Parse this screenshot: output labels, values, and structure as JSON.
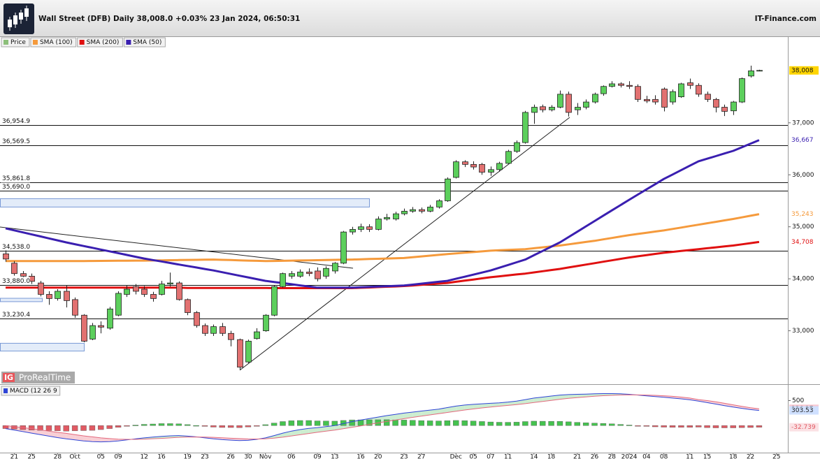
{
  "header": {
    "title": "Wall Street (DFB) Daily 38,008.0 +0.03% 23 Jan 2024, 06:50:31",
    "brand": "IT-Finance.com"
  },
  "watermark": {
    "logo": "IG",
    "name": "ProRealTime"
  },
  "chart_data": [
    {
      "type": "candlestick",
      "name": "Price",
      "up_color": "#5ccf5c",
      "down_color": "#e27171",
      "last_label": "38,008",
      "categories": [
        null,
        "21",
        null,
        "25",
        null,
        null,
        "28",
        null,
        "Oct",
        null,
        null,
        "05",
        null,
        "09",
        null,
        null,
        "12",
        null,
        "16",
        null,
        null,
        "19",
        null,
        "23",
        null,
        null,
        "26",
        null,
        "30",
        null,
        "Nov",
        null,
        null,
        "06",
        null,
        null,
        "09",
        null,
        "13",
        null,
        null,
        "16",
        null,
        "20",
        null,
        null,
        "23",
        null,
        "27",
        null,
        null,
        null,
        "Dec",
        null,
        "05",
        null,
        "07",
        null,
        "11",
        null,
        null,
        "14",
        null,
        "18",
        null,
        null,
        "21",
        null,
        "26",
        null,
        "28",
        null,
        "2024",
        null,
        "04",
        null,
        "08",
        null,
        null,
        "11",
        null,
        "15",
        null,
        null,
        "18",
        null,
        "22",
        null,
        null,
        "25"
      ],
      "open": [
        34480,
        34300,
        34100,
        34050,
        33920,
        33700,
        33620,
        33760,
        33600,
        33300,
        32840,
        33100,
        33050,
        33300,
        33700,
        33850,
        33800,
        33700,
        33700,
        33900,
        33920,
        33600,
        33350,
        33100,
        32950,
        33080,
        32950,
        32830,
        32400,
        32850,
        33000,
        33300,
        33850,
        34050,
        34050,
        34130,
        34150,
        34050,
        34150,
        34300,
        34900,
        34950,
        35000,
        34950,
        35150,
        35150,
        35250,
        35300,
        35330,
        35300,
        35380,
        35500,
        35950,
        36250,
        36200,
        36200,
        36050,
        36100,
        36220,
        36450,
        36620,
        37200,
        37310,
        37250,
        37300,
        37550,
        37250,
        37300,
        37400,
        37560,
        37700,
        37750,
        37720,
        37700,
        37450,
        37450,
        37650,
        37400,
        37500,
        37770,
        37720,
        37550,
        37450,
        37300,
        37230,
        37400,
        37900,
        38000,
        null,
        null
      ],
      "high": [
        34560,
        34340,
        34150,
        34100,
        33960,
        33760,
        33800,
        33880,
        33640,
        33320,
        33150,
        33180,
        33460,
        33760,
        33880,
        33900,
        33860,
        33750,
        33960,
        34120,
        33950,
        33620,
        33380,
        33140,
        33120,
        33150,
        33000,
        32850,
        32830,
        33050,
        33320,
        33870,
        34120,
        34150,
        34180,
        34200,
        34220,
        34240,
        34320,
        34920,
        35000,
        35060,
        35050,
        35200,
        35250,
        35290,
        35350,
        35380,
        35370,
        35420,
        35530,
        35950,
        36280,
        36280,
        36260,
        36230,
        36160,
        36250,
        36480,
        36660,
        37230,
        37350,
        37350,
        37340,
        37620,
        37600,
        37380,
        37450,
        37580,
        37720,
        37800,
        37780,
        37800,
        37740,
        37520,
        37530,
        37680,
        37640,
        37770,
        37850,
        37760,
        37600,
        37480,
        37350,
        37420,
        37870,
        38100,
        38020,
        null,
        null
      ],
      "low": [
        34330,
        34060,
        34000,
        33900,
        33660,
        33500,
        33580,
        33450,
        33250,
        32780,
        32820,
        32950,
        33020,
        33280,
        33650,
        33700,
        33650,
        33560,
        33680,
        33850,
        33580,
        33300,
        33060,
        32900,
        32900,
        32900,
        32700,
        32250,
        32380,
        32830,
        32980,
        33280,
        33830,
        34000,
        34020,
        34050,
        33950,
        34000,
        34100,
        34280,
        34850,
        34900,
        34900,
        34930,
        35120,
        35120,
        35220,
        35270,
        35260,
        35280,
        35350,
        35480,
        35930,
        36150,
        36100,
        36000,
        35980,
        36060,
        36200,
        36420,
        36600,
        36980,
        37200,
        37220,
        37280,
        37120,
        37150,
        37260,
        37370,
        37520,
        37680,
        37680,
        37650,
        37400,
        37380,
        37350,
        37220,
        37350,
        37480,
        37650,
        37500,
        37400,
        37200,
        37130,
        37150,
        37380,
        37870,
        37990,
        null,
        null
      ],
      "close": [
        34380,
        34100,
        34050,
        33950,
        33700,
        33620,
        33760,
        33580,
        33300,
        32800,
        33100,
        33070,
        33420,
        33720,
        33800,
        33760,
        33700,
        33620,
        33900,
        33920,
        33600,
        33350,
        33100,
        32950,
        33080,
        32950,
        32830,
        32300,
        32800,
        32980,
        33300,
        33850,
        34100,
        34100,
        34130,
        34100,
        34000,
        34200,
        34300,
        34900,
        34950,
        35000,
        34950,
        35150,
        35180,
        35250,
        35300,
        35330,
        35300,
        35380,
        35500,
        35920,
        36250,
        36200,
        36150,
        36050,
        36100,
        36220,
        36450,
        36620,
        37200,
        37300,
        37250,
        37300,
        37550,
        37200,
        37300,
        37400,
        37550,
        37700,
        37750,
        37720,
        37700,
        37450,
        37420,
        37400,
        37300,
        37600,
        37750,
        37720,
        37550,
        37450,
        37300,
        37220,
        37400,
        37850,
        38000,
        38008,
        null,
        null
      ],
      "series": [
        {
          "name": "SMA (100)",
          "color": "#f59a3c",
          "last_label": "35,243",
          "values": [
            34340,
            34340,
            34340,
            34340,
            34340,
            34340,
            34340,
            34340,
            34341,
            34342,
            34343,
            34344,
            34346,
            34347,
            34348,
            34349,
            34350,
            34353,
            34355,
            34358,
            34360,
            34363,
            34365,
            34368,
            34370,
            34365,
            34360,
            34355,
            34350,
            34345,
            34340,
            34343,
            34346,
            34349,
            34352,
            34355,
            34358,
            34361,
            34364,
            34367,
            34370,
            34375,
            34380,
            34385,
            34390,
            34395,
            34400,
            34415,
            34430,
            34445,
            34460,
            34475,
            34488,
            34501,
            34514,
            34527,
            34540,
            34548,
            34555,
            34563,
            34570,
            34588,
            34605,
            34623,
            34640,
            34663,
            34685,
            34708,
            34730,
            34758,
            34785,
            34813,
            34840,
            34863,
            34885,
            34908,
            34930,
            34958,
            34985,
            35013,
            35040,
            35068,
            35095,
            35123,
            35150,
            35181,
            35212,
            35243,
            null,
            null
          ]
        },
        {
          "name": "SMA (200)",
          "color": "#e01010",
          "last_label": "34,708",
          "values": [
            33830,
            33830,
            33830,
            33830,
            33830,
            33830,
            33830,
            33830,
            33830,
            33830,
            33830,
            33830,
            33830,
            33830,
            33830,
            33830,
            33830,
            33830,
            33830,
            33830,
            33830,
            33825,
            33825,
            33825,
            33825,
            33825,
            33825,
            33825,
            33825,
            33825,
            33825,
            33820,
            33820,
            33820,
            33820,
            33820,
            33820,
            33820,
            33820,
            33820,
            33820,
            33827,
            33833,
            33840,
            33847,
            33853,
            33860,
            33872,
            33884,
            33896,
            33908,
            33920,
            33942,
            33964,
            33986,
            34008,
            34030,
            34048,
            34065,
            34083,
            34100,
            34123,
            34145,
            34168,
            34190,
            34218,
            34245,
            34273,
            34300,
            34328,
            34355,
            34383,
            34410,
            34433,
            34455,
            34478,
            34500,
            34518,
            34535,
            34553,
            34570,
            34588,
            34605,
            34623,
            34640,
            34663,
            34686,
            34708,
            null,
            null
          ]
        },
        {
          "name": "SMA (50)",
          "color": "#3a1fb0",
          "last_label": "36,667",
          "values": [
            34970,
            34931,
            34893,
            34854,
            34816,
            34777,
            34739,
            34700,
            34666,
            34631,
            34597,
            34562,
            34528,
            34493,
            34459,
            34424,
            34390,
            34361,
            34333,
            34304,
            34275,
            34246,
            34218,
            34189,
            34160,
            34127,
            34093,
            34060,
            34027,
            33993,
            33960,
            33938,
            33917,
            33895,
            33873,
            33852,
            33830,
            33830,
            33830,
            33830,
            33830,
            33837,
            33843,
            33850,
            33857,
            33863,
            33870,
            33888,
            33906,
            33924,
            33942,
            33960,
            34000,
            34040,
            34080,
            34120,
            34160,
            34213,
            34265,
            34318,
            34370,
            34453,
            34535,
            34618,
            34700,
            34803,
            34905,
            35008,
            35110,
            35213,
            35315,
            35418,
            35520,
            35620,
            35720,
            35820,
            35920,
            36005,
            36090,
            36175,
            36260,
            36310,
            36360,
            36410,
            36460,
            36529,
            36598,
            36667,
            null,
            null
          ]
        }
      ],
      "levels": [
        {
          "value": 36954.9,
          "label": "36,954.9"
        },
        {
          "value": 36569.5,
          "label": "36,569.5"
        },
        {
          "value": 35861.8,
          "label": "35,861.8"
        },
        {
          "value": 35690.0,
          "label": "35,690.0"
        },
        {
          "value": 34538.0,
          "label": "34,538.0"
        },
        {
          "value": 33880.0,
          "label": "33,880.0"
        },
        {
          "value": 33230.4,
          "label": "33,230.4"
        }
      ],
      "zones": [
        {
          "values": [
            35380,
            35540
          ]
        },
        {
          "values": [
            33560,
            33625
          ]
        },
        {
          "values": [
            32610,
            32760
          ]
        }
      ],
      "ylim": [
        32000,
        38650
      ],
      "yticks": [
        {
          "value": 33000,
          "label": "33,000"
        },
        {
          "value": 34000,
          "label": "34,000"
        },
        {
          "value": 35000,
          "label": "35,000"
        },
        {
          "value": 36000,
          "label": "36,000"
        },
        {
          "value": 37000,
          "label": "37,000"
        }
      ]
    },
    {
      "type": "macd",
      "title": "MACD (12 26 9",
      "series": [
        {
          "color": "#2f45d6",
          "label_fill": "#cfe0ff",
          "values": [
            -60,
            -90,
            -120,
            -150,
            -180,
            -210,
            -240,
            -265,
            -285,
            -305,
            -320,
            -325,
            -320,
            -305,
            -285,
            -265,
            -245,
            -230,
            -215,
            -205,
            -200,
            -210,
            -225,
            -245,
            -265,
            -280,
            -290,
            -300,
            -295,
            -275,
            -245,
            -200,
            -150,
            -110,
            -80,
            -55,
            -40,
            -20,
            0,
            40,
            80,
            110,
            140,
            170,
            200,
            225,
            250,
            270,
            290,
            310,
            330,
            360,
            390,
            410,
            425,
            435,
            445,
            455,
            470,
            490,
            520,
            550,
            570,
            590,
            610,
            620,
            625,
            630,
            635,
            640,
            640,
            635,
            625,
            610,
            595,
            580,
            565,
            550,
            535,
            515,
            490,
            460,
            430,
            400,
            370,
            345,
            320,
            303.53,
            null,
            null
          ]
        },
        {
          "color": "#e36a7e",
          "label_fill": "#f8c9d2",
          "values": [
            0,
            -20,
            -40,
            -60,
            -85,
            -110,
            -135,
            -155,
            -180,
            -205,
            -225,
            -245,
            -260,
            -270,
            -275,
            -275,
            -270,
            -262,
            -255,
            -245,
            -235,
            -230,
            -228,
            -230,
            -235,
            -243,
            -252,
            -260,
            -267,
            -268,
            -264,
            -251,
            -231,
            -207,
            -182,
            -157,
            -134,
            -111,
            -89,
            -63,
            -34,
            -5,
            24,
            53,
            82,
            111,
            139,
            165,
            190,
            214,
            237,
            262,
            287,
            311,
            333,
            353,
            372,
            388,
            404,
            421,
            439,
            461,
            483,
            504,
            526,
            544,
            560,
            574,
            586,
            597,
            605,
            611,
            614,
            613,
            610,
            604,
            596,
            585,
            570,
            550,
            520,
            500,
            475,
            445,
            415,
            385,
            358,
            336.27,
            null,
            null
          ]
        }
      ],
      "histogram": {
        "up_color": "#45c24f",
        "down_color": "#e15a63",
        "values": [
          -60,
          -70,
          -80,
          -90,
          -95,
          -100,
          -105,
          -110,
          -105,
          -100,
          -95,
          -80,
          -60,
          -35,
          -10,
          10,
          25,
          32,
          40,
          40,
          35,
          20,
          3,
          -15,
          -30,
          -37,
          -38,
          -40,
          -28,
          -7,
          19,
          51,
          81,
          97,
          102,
          102,
          94,
          91,
          89,
          103,
          114,
          115,
          116,
          117,
          118,
          114,
          111,
          105,
          100,
          96,
          93,
          98,
          103,
          99,
          92,
          82,
          73,
          67,
          66,
          69,
          81,
          89,
          87,
          86,
          84,
          76,
          65,
          56,
          49,
          43,
          35,
          24,
          11,
          -3,
          -15,
          -24,
          -31,
          -35,
          -35,
          -35,
          -30,
          -40,
          -45,
          -45,
          -45,
          -40,
          -38,
          -32.739,
          null,
          null
        ]
      },
      "fill_up": "#bfe8c4",
      "fill_down": "#f6c3cb",
      "ylim": [
        -540,
        800
      ],
      "yticks": [
        500
      ]
    }
  ]
}
